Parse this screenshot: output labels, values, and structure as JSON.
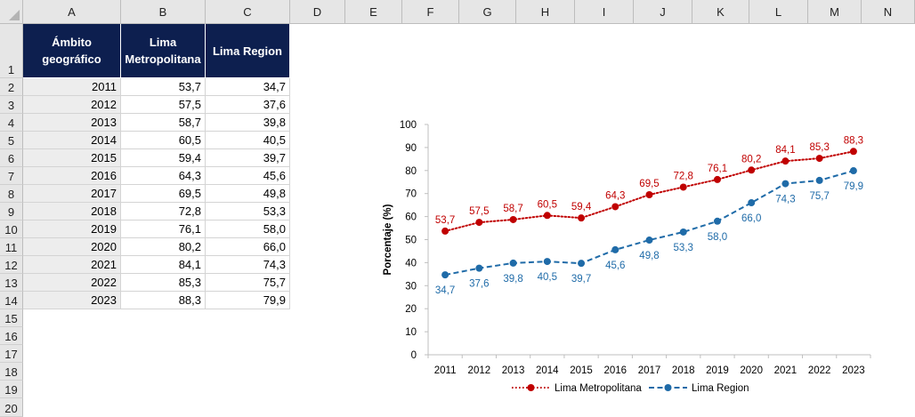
{
  "sheet": {
    "columns": [
      "A",
      "B",
      "C",
      "D",
      "E",
      "F",
      "G",
      "H",
      "I",
      "J",
      "K",
      "L",
      "M",
      "N"
    ],
    "rows": [
      "1",
      "2",
      "3",
      "4",
      "5",
      "6",
      "7",
      "8",
      "9",
      "10",
      "11",
      "12",
      "13",
      "14",
      "15",
      "16",
      "17",
      "18",
      "19",
      "20"
    ]
  },
  "table": {
    "headers": [
      "Ámbito geográfico",
      "Lima Metropolitana",
      "Lima Region"
    ],
    "rows": [
      [
        "2011",
        "53,7",
        "34,7"
      ],
      [
        "2012",
        "57,5",
        "37,6"
      ],
      [
        "2013",
        "58,7",
        "39,8"
      ],
      [
        "2014",
        "60,5",
        "40,5"
      ],
      [
        "2015",
        "59,4",
        "39,7"
      ],
      [
        "2016",
        "64,3",
        "45,6"
      ],
      [
        "2017",
        "69,5",
        "49,8"
      ],
      [
        "2018",
        "72,8",
        "53,3"
      ],
      [
        "2019",
        "76,1",
        "58,0"
      ],
      [
        "2020",
        "80,2",
        "66,0"
      ],
      [
        "2021",
        "84,1",
        "74,3"
      ],
      [
        "2022",
        "85,3",
        "75,7"
      ],
      [
        "2023",
        "88,3",
        "79,9"
      ]
    ]
  },
  "chart_data": {
    "type": "line",
    "x": [
      "2011",
      "2012",
      "2013",
      "2014",
      "2015",
      "2016",
      "2017",
      "2018",
      "2019",
      "2020",
      "2021",
      "2022",
      "2023"
    ],
    "series": [
      {
        "name": "Lima Metropolitana",
        "color": "#c00000",
        "line_style": "dotted",
        "values": [
          53.7,
          57.5,
          58.7,
          60.5,
          59.4,
          64.3,
          69.5,
          72.8,
          76.1,
          80.2,
          84.1,
          85.3,
          88.3
        ],
        "labels": [
          "53,7",
          "57,5",
          "58,7",
          "60,5",
          "59,4",
          "64,3",
          "69,5",
          "72,8",
          "76,1",
          "80,2",
          "84,1",
          "85,3",
          "88,3"
        ]
      },
      {
        "name": "Lima Region",
        "color": "#1f6ba8",
        "line_style": "dashed",
        "values": [
          34.7,
          37.6,
          39.8,
          40.5,
          39.7,
          45.6,
          49.8,
          53.3,
          58.0,
          66.0,
          74.3,
          75.7,
          79.9
        ],
        "labels": [
          "34,7",
          "37,6",
          "39,8",
          "40,5",
          "39,7",
          "45,6",
          "49,8",
          "53,3",
          "58,0",
          "66,0",
          "74,3",
          "75,7",
          "79,9"
        ]
      }
    ],
    "ylabel": "Porcentaje (%)",
    "xlabel": "",
    "ylim": [
      0,
      100
    ],
    "yticks": [
      "0",
      "10",
      "20",
      "30",
      "40",
      "50",
      "60",
      "70",
      "80",
      "90",
      "100"
    ],
    "legend_position": "bottom",
    "grid": false
  }
}
